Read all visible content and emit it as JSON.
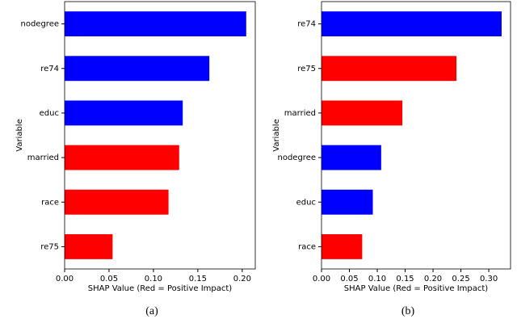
{
  "chart_data": [
    {
      "type": "bar",
      "orientation": "horizontal",
      "caption": "(a)",
      "xlabel": "SHAP Value (Red = Positive Impact)",
      "ylabel": "Variable",
      "categories": [
        "nodegree",
        "re74",
        "educ",
        "married",
        "race",
        "re75"
      ],
      "values": [
        0.2045,
        0.163,
        0.133,
        0.129,
        0.117,
        0.054
      ],
      "colors": [
        "#0000ff",
        "#0000ff",
        "#0000ff",
        "#ff0000",
        "#ff0000",
        "#ff0000"
      ],
      "xlim": [
        0,
        0.2147
      ],
      "xticks": [
        {
          "value": 0,
          "label": "0.00"
        },
        {
          "value": 0.05,
          "label": "0.05"
        },
        {
          "value": 0.1,
          "label": "0.10"
        },
        {
          "value": 0.15,
          "label": "0.15"
        },
        {
          "value": 0.2,
          "label": "0.20"
        }
      ]
    },
    {
      "type": "bar",
      "orientation": "horizontal",
      "caption": "(b)",
      "xlabel": "SHAP Value (Red = Positive Impact)",
      "ylabel": "Variable",
      "categories": [
        "re74",
        "re75",
        "married",
        "nodegree",
        "educ",
        "race"
      ],
      "values": [
        0.323,
        0.242,
        0.145,
        0.107,
        0.092,
        0.073
      ],
      "colors": [
        "#0000ff",
        "#ff0000",
        "#ff0000",
        "#0000ff",
        "#0000ff",
        "#ff0000"
      ],
      "xlim": [
        0,
        0.339
      ],
      "xticks": [
        {
          "value": 0,
          "label": "0.00"
        },
        {
          "value": 0.05,
          "label": "0.05"
        },
        {
          "value": 0.1,
          "label": "0.10"
        },
        {
          "value": 0.15,
          "label": "0.15"
        },
        {
          "value": 0.2,
          "label": "0.20"
        },
        {
          "value": 0.25,
          "label": "0.25"
        },
        {
          "value": 0.3,
          "label": "0.30"
        }
      ]
    }
  ]
}
